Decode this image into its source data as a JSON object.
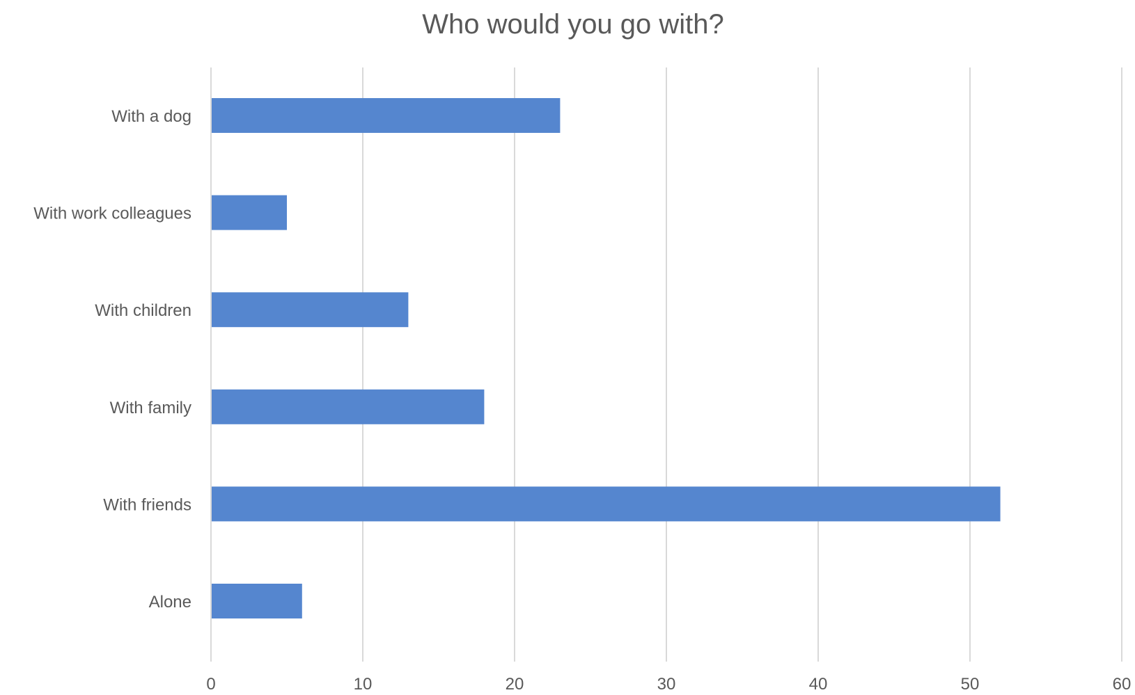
{
  "chart_data": {
    "type": "bar",
    "orientation": "horizontal",
    "title": "Who would you go with?",
    "categories": [
      "With a dog",
      "With work colleagues",
      "With children",
      "With family",
      "With friends",
      "Alone"
    ],
    "values": [
      23,
      5,
      13,
      18,
      52,
      6
    ],
    "xlabel": "",
    "ylabel": "",
    "xlim": [
      0,
      60
    ],
    "xticks": [
      0,
      10,
      20,
      30,
      40,
      50,
      60
    ],
    "grid": true,
    "legend": "none",
    "bar_color": "#5586CF",
    "gridline_color": "#D9D9D9",
    "text_color": "#595959"
  }
}
